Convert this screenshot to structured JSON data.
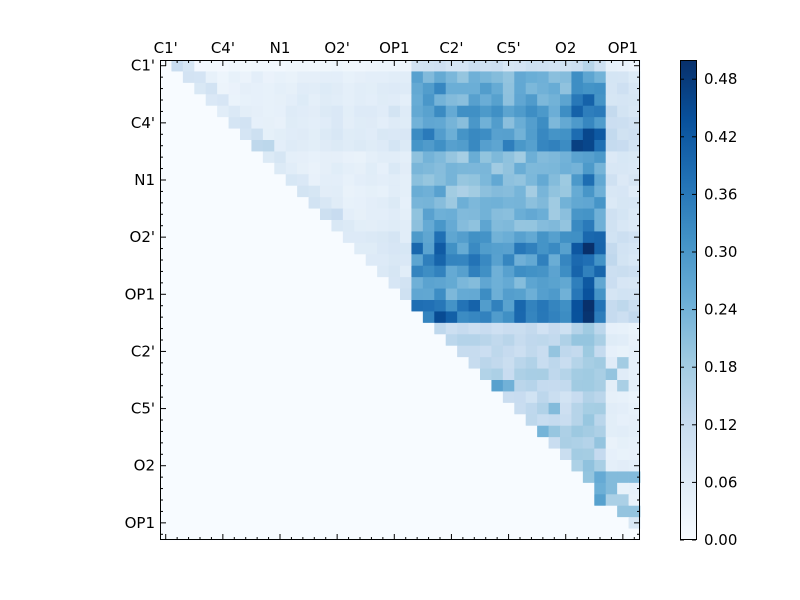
{
  "chart_data": {
    "type": "heatmap",
    "size": 42,
    "title": "",
    "xlabel": "",
    "ylabel": "",
    "x_tick_labels": [
      "C1'",
      "C4'",
      "N1",
      "O2'",
      "OP1",
      "C2'",
      "C5'",
      "O2",
      "OP1"
    ],
    "y_tick_labels": [
      "C1'",
      "C4'",
      "N1",
      "O2'",
      "OP1",
      "C2'",
      "C5'",
      "O2",
      "OP1"
    ],
    "tick_indices": [
      0,
      5,
      10,
      15,
      20,
      25,
      30,
      35,
      40
    ],
    "colorbar": {
      "colormap": "Blues",
      "min": 0.0,
      "max": 0.5,
      "tick_values": [
        0.0,
        0.06,
        0.12,
        0.18,
        0.24,
        0.3,
        0.36,
        0.42,
        0.48
      ],
      "tick_labels": [
        "0.00",
        "0.06",
        "0.12",
        "0.18",
        "0.24",
        "0.30",
        "0.36",
        "0.42",
        "0.48"
      ]
    },
    "col_profile": [
      0.03,
      0.03,
      0.04,
      0.04,
      0.05,
      0.04,
      0.05,
      0.05,
      0.06,
      0.05,
      0.05,
      0.06,
      0.07,
      0.06,
      0.07,
      0.08,
      0.06,
      0.06,
      0.07,
      0.07,
      0.09,
      0.07,
      0.34,
      0.33,
      0.36,
      0.31,
      0.3,
      0.33,
      0.32,
      0.31,
      0.3,
      0.31,
      0.32,
      0.33,
      0.3,
      0.31,
      0.4,
      0.45,
      0.38,
      0.12,
      0.11,
      0.1
    ],
    "row_factor": [
      0.3,
      0.72,
      0.8,
      0.78,
      0.92,
      0.84,
      0.95,
      1.0,
      0.68,
      0.7,
      0.72,
      0.66,
      0.7,
      0.72,
      0.74,
      0.92,
      1.0,
      0.96,
      0.9,
      0.8,
      0.86,
      1.1,
      1.12,
      0.35,
      0.45,
      0.38,
      0.42,
      0.48,
      0.4,
      0.36,
      0.42,
      0.4,
      0.48,
      0.35,
      0.4,
      0.45,
      0.42,
      0.4,
      0.38,
      0.4,
      0.3,
      0.25
    ],
    "near_diag": [
      0.1,
      0.09,
      0.08,
      0.07,
      0.06,
      0.08,
      0.1,
      0.12,
      0.08,
      0.06,
      0.07,
      0.08,
      0.09,
      0.1,
      0.07,
      0.06,
      0.05,
      0.06,
      0.07,
      0.08,
      0.1,
      0.05,
      0.08,
      0.06,
      0.12,
      0.07,
      0.1,
      0.14,
      0.24,
      0.1,
      0.12,
      0.09,
      0.22,
      0.14,
      0.1,
      0.12,
      0.24,
      0.3,
      0.14,
      0.1,
      0.08,
      0.04
    ],
    "highlights": [
      {
        "row": 30,
        "col": 34,
        "value": 0.22
      },
      {
        "row": 36,
        "col": 39,
        "value": 0.22
      },
      {
        "row": 36,
        "col": 40,
        "value": 0.22
      },
      {
        "row": 36,
        "col": 41,
        "value": 0.22
      },
      {
        "row": 37,
        "col": 39,
        "value": 0.22
      },
      {
        "row": 38,
        "col": 38,
        "value": 0.28
      },
      {
        "row": 39,
        "col": 40,
        "value": 0.2
      },
      {
        "row": 39,
        "col": 41,
        "value": 0.2
      },
      {
        "row": 26,
        "col": 40,
        "value": 0.18
      },
      {
        "row": 27,
        "col": 39,
        "value": 0.2
      },
      {
        "row": 28,
        "col": 40,
        "value": 0.17
      },
      {
        "row": 25,
        "col": 34,
        "value": 0.2
      },
      {
        "row": 33,
        "col": 38,
        "value": 0.2
      },
      {
        "row": 34,
        "col": 36,
        "value": 0.18
      }
    ]
  }
}
